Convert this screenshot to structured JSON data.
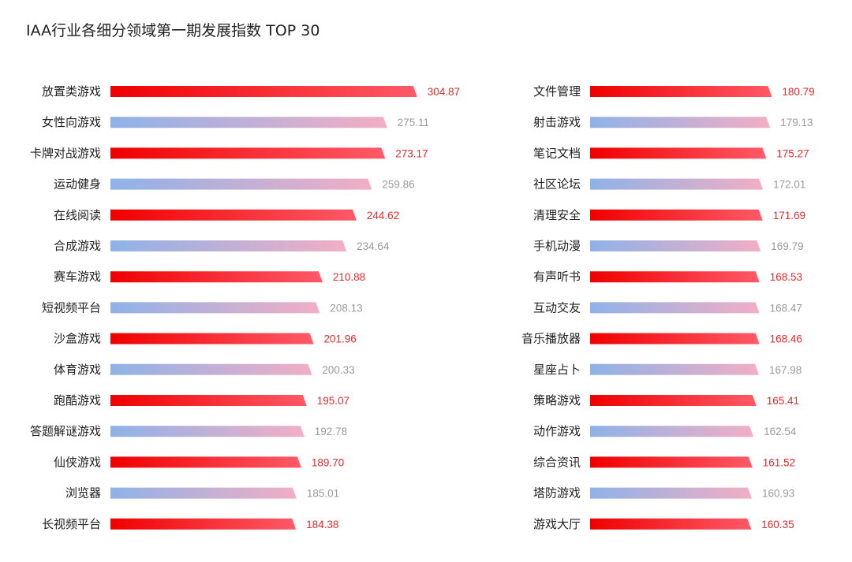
{
  "chart_data": {
    "type": "bar",
    "orientation": "horizontal",
    "title": "IAA行业各细分领域第一期发展指数 TOP 30",
    "colors": {
      "red_start": "#f00000",
      "red_end": "#ff5a68",
      "red_text": "#e8292d",
      "blue_start": "#8fb2e8",
      "blue_end": "#f2aec4",
      "gray_text": "#9a9a9a"
    },
    "groups": [
      {
        "name": "left",
        "categories": [
          "放置类游戏",
          "女性向游戏",
          "卡牌对战游戏",
          "运动健身",
          "在线阅读",
          "合成游戏",
          "赛车游戏",
          "短视频平台",
          "沙盒游戏",
          "体育游戏",
          "跑酷游戏",
          "答题解谜游戏",
          "仙侠游戏",
          "浏览器",
          "长视频平台"
        ],
        "values": [
          304.87,
          275.11,
          273.17,
          259.86,
          244.62,
          234.64,
          210.88,
          208.13,
          201.96,
          200.33,
          195.07,
          192.78,
          189.7,
          185.01,
          184.38
        ],
        "labels": [
          "304.87",
          "275.11",
          "273.17",
          "259.86",
          "244.62",
          "234.64",
          "210.88",
          "208.13",
          "201.96",
          "200.33",
          "195.07",
          "192.78",
          "189.70",
          "185.01",
          "184.38"
        ]
      },
      {
        "name": "right",
        "categories": [
          "文件管理",
          "射击游戏",
          "笔记文档",
          "社区论坛",
          "清理安全",
          "手机动漫",
          "有声听书",
          "互动交友",
          "音乐播放器",
          "星座占卜",
          "策略游戏",
          "动作游戏",
          "综合资讯",
          "塔防游戏",
          "游戏大厅"
        ],
        "values": [
          180.79,
          179.13,
          175.27,
          172.01,
          171.69,
          169.79,
          168.53,
          168.47,
          168.46,
          167.98,
          165.41,
          162.54,
          161.52,
          160.93,
          160.35
        ],
        "labels": [
          "180.79",
          "179.13",
          "175.27",
          "172.01",
          "171.69",
          "169.79",
          "168.53",
          "168.47",
          "168.46",
          "167.98",
          "165.41",
          "162.54",
          "161.52",
          "160.93",
          "160.35"
        ]
      }
    ]
  }
}
